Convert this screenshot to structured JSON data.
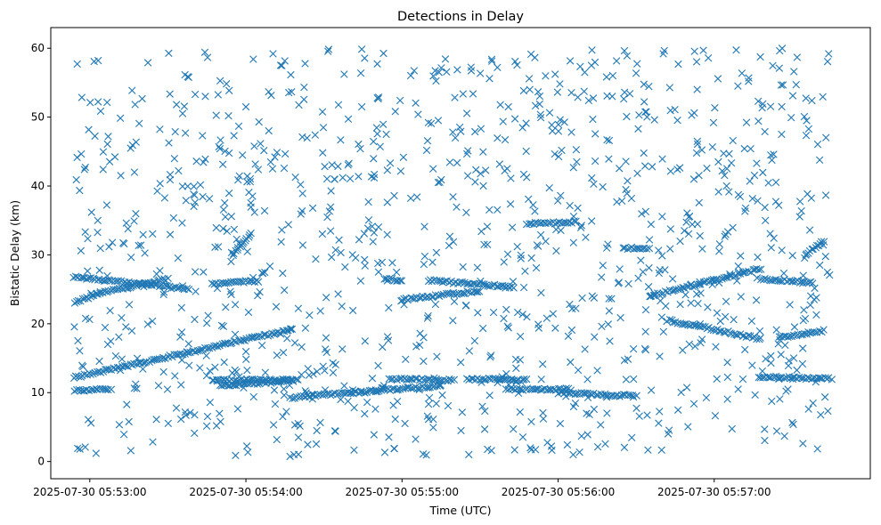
{
  "chart_data": {
    "type": "scatter",
    "title": "Detections in Delay",
    "xlabel": "Time (UTC)",
    "ylabel": "Bistatic Delay (km)",
    "marker": "x",
    "color": "#1f77b4",
    "x_is_time": true,
    "xlim": [
      "2025-07-30 05:52:45",
      "2025-07-30 05:58:00"
    ],
    "ylim": [
      -2.5,
      63
    ],
    "x_ticks": [
      {
        "value": "2025-07-30 05:53:00",
        "label": "2025-07-30 05:53:00"
      },
      {
        "value": "2025-07-30 05:54:00",
        "label": "2025-07-30 05:54:00"
      },
      {
        "value": "2025-07-30 05:55:00",
        "label": "2025-07-30 05:55:00"
      },
      {
        "value": "2025-07-30 05:56:00",
        "label": "2025-07-30 05:56:00"
      },
      {
        "value": "2025-07-30 05:57:00",
        "label": "2025-07-30 05:57:00"
      }
    ],
    "y_ticks": [
      0,
      10,
      20,
      30,
      40,
      50,
      60
    ],
    "grid": false,
    "legend": "none",
    "tracks": [
      {
        "from": [
          "2025-07-30 05:52:54",
          12.2
        ],
        "to": [
          "2025-07-30 05:54:18",
          19.2
        ]
      },
      {
        "from": [
          "2025-07-30 05:52:54",
          23.0
        ],
        "to": [
          "2025-07-30 05:53:04",
          24.5
        ]
      },
      {
        "from": [
          "2025-07-30 05:53:04",
          24.5
        ],
        "to": [
          "2025-07-30 05:53:30",
          26.5
        ]
      },
      {
        "from": [
          "2025-07-30 05:52:54",
          26.8
        ],
        "to": [
          "2025-07-30 05:53:38",
          25.0
        ]
      },
      {
        "from": [
          "2025-07-30 05:52:54",
          10.3
        ],
        "to": [
          "2025-07-30 05:53:08",
          10.5
        ]
      },
      {
        "from": [
          "2025-07-30 05:53:47",
          11.8
        ],
        "to": [
          "2025-07-30 05:54:18",
          11.8
        ]
      },
      {
        "from": [
          "2025-07-30 05:53:50",
          11.0
        ],
        "to": [
          "2025-07-30 05:54:20",
          11.8
        ]
      },
      {
        "from": [
          "2025-07-30 05:53:47",
          25.8
        ],
        "to": [
          "2025-07-30 05:54:05",
          26.2
        ]
      },
      {
        "from": [
          "2025-07-30 05:53:55",
          30.0
        ],
        "to": [
          "2025-07-30 05:54:02",
          33.2
        ]
      },
      {
        "from": [
          "2025-07-30 05:54:18",
          9.3
        ],
        "to": [
          "2025-07-30 05:55:15",
          11.0
        ]
      },
      {
        "from": [
          "2025-07-30 05:54:55",
          12.0
        ],
        "to": [
          "2025-07-30 05:55:20",
          11.8
        ]
      },
      {
        "from": [
          "2025-07-30 05:54:53",
          26.5
        ],
        "to": [
          "2025-07-30 05:55:00",
          26.3
        ]
      },
      {
        "from": [
          "2025-07-30 05:55:10",
          26.3
        ],
        "to": [
          "2025-07-30 05:55:43",
          25.3
        ]
      },
      {
        "from": [
          "2025-07-30 05:55:00",
          23.5
        ],
        "to": [
          "2025-07-30 05:55:30",
          24.8
        ]
      },
      {
        "from": [
          "2025-07-30 05:55:25",
          12.0
        ],
        "to": [
          "2025-07-30 05:55:48",
          11.8
        ]
      },
      {
        "from": [
          "2025-07-30 05:55:40",
          10.5
        ],
        "to": [
          "2025-07-30 05:56:05",
          10.5
        ]
      },
      {
        "from": [
          "2025-07-30 05:55:48",
          34.5
        ],
        "to": [
          "2025-07-30 05:56:07",
          34.8
        ]
      },
      {
        "from": [
          "2025-07-30 05:56:00",
          10.0
        ],
        "to": [
          "2025-07-30 05:56:30",
          9.5
        ]
      },
      {
        "from": [
          "2025-07-30 05:56:25",
          31.0
        ],
        "to": [
          "2025-07-30 05:56:35",
          31.0
        ]
      },
      {
        "from": [
          "2025-07-30 05:56:35",
          24.0
        ],
        "to": [
          "2025-07-30 05:57:18",
          28.0
        ]
      },
      {
        "from": [
          "2025-07-30 05:56:42",
          20.5
        ],
        "to": [
          "2025-07-30 05:57:18",
          17.8
        ]
      },
      {
        "from": [
          "2025-07-30 05:57:17",
          12.3
        ],
        "to": [
          "2025-07-30 05:57:45",
          12.0
        ]
      },
      {
        "from": [
          "2025-07-30 05:57:18",
          26.5
        ],
        "to": [
          "2025-07-30 05:57:38",
          26.0
        ]
      },
      {
        "from": [
          "2025-07-30 05:57:25",
          18.0
        ],
        "to": [
          "2025-07-30 05:57:42",
          19.0
        ]
      },
      {
        "from": [
          "2025-07-30 05:57:35",
          30.0
        ],
        "to": [
          "2025-07-30 05:57:42",
          32.0
        ]
      }
    ],
    "scatter": {
      "approximate": true,
      "count": 1100,
      "x_range": [
        "2025-07-30 05:52:54",
        "2025-07-30 05:57:45"
      ],
      "y_range": [
        0.5,
        60
      ]
    }
  }
}
